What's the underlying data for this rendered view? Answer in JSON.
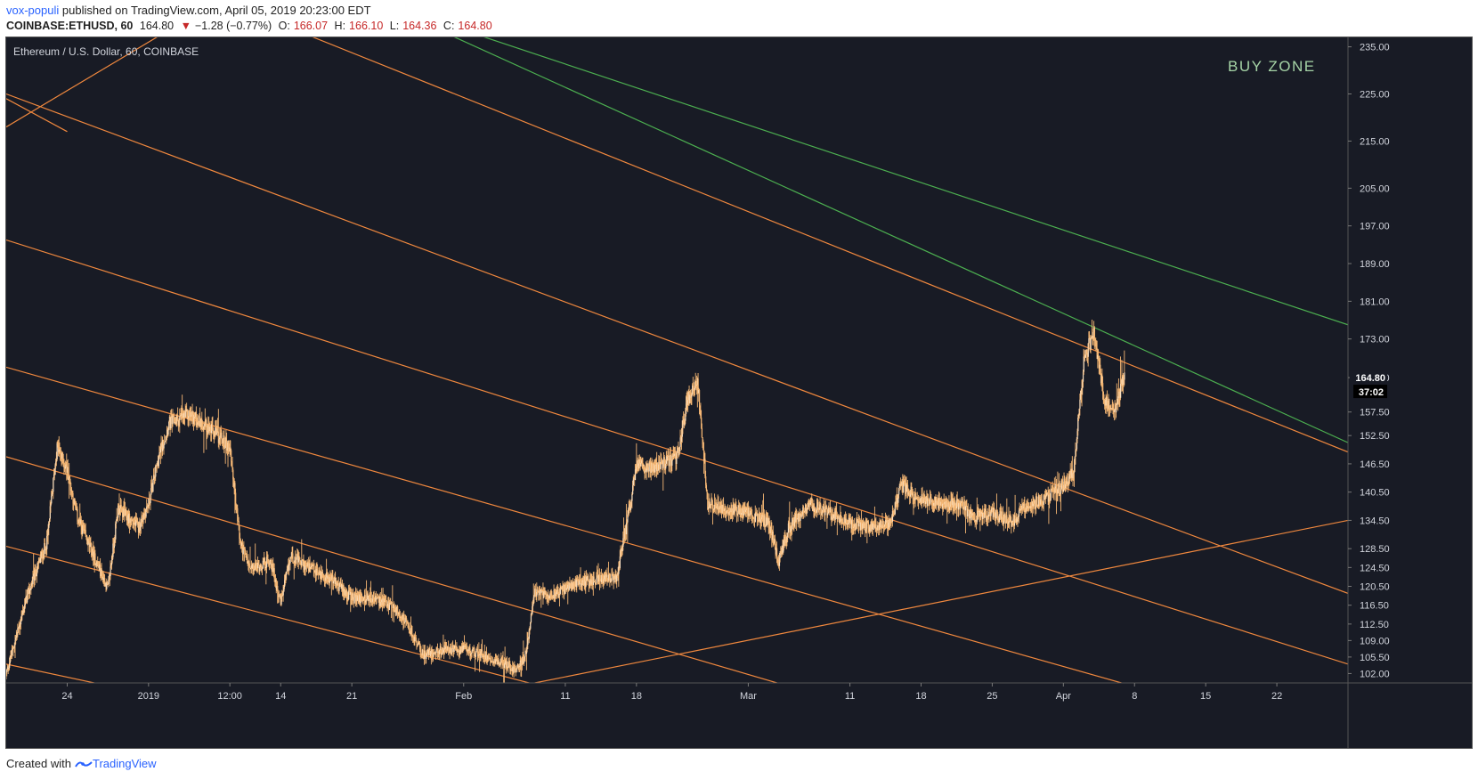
{
  "header": {
    "author": "vox-populi",
    "published_text": "published on TradingView.com, April 05, 2019 20:23:00 EDT",
    "symbol_line": {
      "symbol": "COINBASE:ETHUSD, 60",
      "last": "164.80",
      "arrow": "▼",
      "change": "−1.28 (−0.77%)",
      "o_label": "O:",
      "o": "166.07",
      "h_label": "H:",
      "h": "166.10",
      "l_label": "L:",
      "l": "164.36",
      "c_label": "C:",
      "c": "164.80"
    }
  },
  "chart_title": "Ethereum / U.S. Dollar, 60, COINBASE",
  "annotation": "BUY ZONE",
  "price_badge": "164.80",
  "countdown_badge": "37:02",
  "footer": {
    "created_with": "Created with",
    "brand": "TradingView"
  },
  "colors": {
    "background": "#181b25",
    "candles": "#f5b774",
    "orange_lines": "#f0883e",
    "green_line": "#4caf50",
    "annotation": "#a6d4a6"
  },
  "chart_data": {
    "type": "candlestick",
    "title": "Ethereum / U.S. Dollar, 60, COINBASE",
    "ylim": [
      100,
      237
    ],
    "x_range": [
      "2018-12-18",
      "2019-04-29"
    ],
    "y_ticks": [
      "235.00",
      "225.00",
      "215.00",
      "205.00",
      "197.00",
      "189.00",
      "181.00",
      "173.00",
      "164.80",
      "157.50",
      "152.50",
      "146.50",
      "140.50",
      "134.50",
      "128.50",
      "124.50",
      "120.50",
      "116.50",
      "112.50",
      "109.00",
      "105.50",
      "102.00"
    ],
    "x_ticks": [
      {
        "label": "24",
        "date": "2018-12-24"
      },
      {
        "label": "2019",
        "date": "2019-01-01"
      },
      {
        "label": "12:00",
        "date": "2019-01-09"
      },
      {
        "label": "14",
        "date": "2019-01-14"
      },
      {
        "label": "21",
        "date": "2019-01-21"
      },
      {
        "label": "Feb",
        "date": "2019-02-01"
      },
      {
        "label": "11",
        "date": "2019-02-11"
      },
      {
        "label": "18",
        "date": "2019-02-18"
      },
      {
        "label": "Mar",
        "date": "2019-03-01"
      },
      {
        "label": "11",
        "date": "2019-03-11"
      },
      {
        "label": "18",
        "date": "2019-03-18"
      },
      {
        "label": "25",
        "date": "2019-03-25"
      },
      {
        "label": "Apr",
        "date": "2019-04-01"
      },
      {
        "label": "8",
        "date": "2019-04-08"
      },
      {
        "label": "15",
        "date": "2019-04-15"
      },
      {
        "label": "22",
        "date": "2019-04-22"
      }
    ],
    "price_path": [
      [
        "2018-12-18",
        102
      ],
      [
        "2018-12-19",
        110
      ],
      [
        "2018-12-20",
        118
      ],
      [
        "2018-12-22",
        130
      ],
      [
        "2018-12-23",
        150
      ],
      [
        "2018-12-24",
        145
      ],
      [
        "2018-12-25",
        135
      ],
      [
        "2018-12-26",
        130
      ],
      [
        "2018-12-28",
        120
      ],
      [
        "2018-12-29",
        137
      ],
      [
        "2018-12-31",
        133
      ],
      [
        "2019-01-01",
        138
      ],
      [
        "2019-01-02",
        148
      ],
      [
        "2019-01-03",
        155
      ],
      [
        "2019-01-05",
        157
      ],
      [
        "2019-01-07",
        154
      ],
      [
        "2019-01-09",
        150
      ],
      [
        "2019-01-10",
        130
      ],
      [
        "2019-01-11",
        124
      ],
      [
        "2019-01-13",
        126
      ],
      [
        "2019-01-14",
        117
      ],
      [
        "2019-01-15",
        127
      ],
      [
        "2019-01-17",
        124
      ],
      [
        "2019-01-19",
        122
      ],
      [
        "2019-01-21",
        118
      ],
      [
        "2019-01-23",
        118
      ],
      [
        "2019-01-25",
        116
      ],
      [
        "2019-01-26",
        114
      ],
      [
        "2019-01-27",
        110
      ],
      [
        "2019-01-28",
        106
      ],
      [
        "2019-01-30",
        107
      ],
      [
        "2019-02-01",
        107
      ],
      [
        "2019-02-03",
        106
      ],
      [
        "2019-02-05",
        104
      ],
      [
        "2019-02-06",
        103
      ],
      [
        "2019-02-07",
        105
      ],
      [
        "2019-02-08",
        119
      ],
      [
        "2019-02-10",
        119
      ],
      [
        "2019-02-12",
        121
      ],
      [
        "2019-02-14",
        122
      ],
      [
        "2019-02-16",
        122
      ],
      [
        "2019-02-17",
        133
      ],
      [
        "2019-02-18",
        146
      ],
      [
        "2019-02-20",
        146
      ],
      [
        "2019-02-22",
        148
      ],
      [
        "2019-02-23",
        160
      ],
      [
        "2019-02-24",
        164
      ],
      [
        "2019-02-25",
        138
      ],
      [
        "2019-02-27",
        137
      ],
      [
        "2019-03-01",
        136
      ],
      [
        "2019-03-03",
        134
      ],
      [
        "2019-03-04",
        126
      ],
      [
        "2019-03-05",
        133
      ],
      [
        "2019-03-07",
        138
      ],
      [
        "2019-03-09",
        136
      ],
      [
        "2019-03-11",
        134
      ],
      [
        "2019-03-13",
        133
      ],
      [
        "2019-03-15",
        134
      ],
      [
        "2019-03-16",
        142
      ],
      [
        "2019-03-18",
        139
      ],
      [
        "2019-03-20",
        138
      ],
      [
        "2019-03-22",
        138
      ],
      [
        "2019-03-23",
        135
      ],
      [
        "2019-03-25",
        136
      ],
      [
        "2019-03-27",
        134
      ],
      [
        "2019-03-28",
        137
      ],
      [
        "2019-03-30",
        139
      ],
      [
        "2019-04-01",
        142
      ],
      [
        "2019-04-02",
        145
      ],
      [
        "2019-04-03",
        168
      ],
      [
        "2019-04-04",
        175
      ],
      [
        "2019-04-05",
        160
      ],
      [
        "2019-04-06",
        158
      ],
      [
        "2019-04-07",
        165
      ]
    ],
    "trendlines": [
      {
        "color": "orange",
        "from": [
          "2018-12-18",
          218
        ],
        "to": [
          "2019-01-08",
          245
        ]
      },
      {
        "color": "orange",
        "from": [
          "2018-12-18",
          224
        ],
        "to": [
          "2018-12-24",
          217
        ]
      },
      {
        "color": "orange",
        "from": [
          "2019-01-08",
          245
        ],
        "to": [
          "2019-04-29",
          149
        ]
      },
      {
        "color": "green",
        "from": [
          "2019-01-23",
          245
        ],
        "to": [
          "2019-04-29",
          176
        ]
      },
      {
        "color": "green",
        "from": [
          "2019-01-23",
          245
        ],
        "to": [
          "2019-04-29",
          151
        ]
      },
      {
        "color": "orange",
        "from": [
          "2018-12-18",
          225
        ],
        "to": [
          "2019-04-29",
          119
        ]
      },
      {
        "color": "orange",
        "from": [
          "2018-12-18",
          194
        ],
        "to": [
          "2019-04-29",
          104
        ]
      },
      {
        "color": "orange",
        "from": [
          "2018-12-18",
          167
        ],
        "to": [
          "2019-04-10",
          98
        ]
      },
      {
        "color": "orange",
        "from": [
          "2018-12-18",
          148
        ],
        "to": [
          "2019-03-07",
          98
        ]
      },
      {
        "color": "orange",
        "from": [
          "2018-12-18",
          129
        ],
        "to": [
          "2019-02-11",
          98
        ]
      },
      {
        "color": "orange",
        "from": [
          "2018-12-18",
          104
        ],
        "to": [
          "2018-12-31",
          98
        ]
      },
      {
        "color": "orange",
        "from": [
          "2019-02-08",
          100
        ],
        "to": [
          "2019-04-29",
          134.5
        ]
      }
    ]
  }
}
